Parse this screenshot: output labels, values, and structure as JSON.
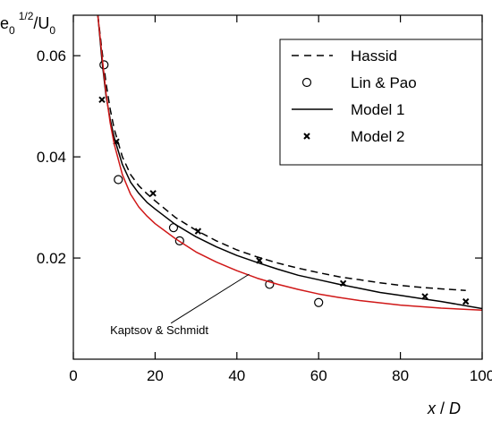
{
  "chart_data": {
    "type": "line",
    "xlabel": {
      "main": "x",
      "sep": " / ",
      "denom": "D"
    },
    "ylabel": {
      "base": "e",
      "sub": "0",
      "sup": "1/2",
      "sep": "/",
      "denom": "U",
      "denom_sub": "0"
    },
    "xlim": [
      0,
      100
    ],
    "ylim": [
      0.0,
      0.068
    ],
    "xticks": [
      0,
      20,
      40,
      60,
      80,
      100
    ],
    "xtick_labels": [
      "0",
      "20",
      "40",
      "60",
      "80",
      "100"
    ],
    "yticks": [
      0.02,
      0.04,
      0.06
    ],
    "ytick_labels": [
      "0.02",
      "0.04",
      "0.06"
    ],
    "grid": false,
    "legend_position": "top-right",
    "series": [
      {
        "name": "Hassid",
        "kind": "line",
        "style": "dashed",
        "color": "#000000",
        "x": [
          6,
          7,
          8,
          9,
          10,
          12,
          14,
          16,
          18,
          20,
          25,
          30,
          35,
          40,
          45,
          50,
          55,
          60,
          65,
          70,
          75,
          80,
          85,
          90,
          96
        ],
        "y": [
          0.068,
          0.061,
          0.0545,
          0.0495,
          0.0455,
          0.04,
          0.0365,
          0.0343,
          0.0327,
          0.0313,
          0.028,
          0.0255,
          0.0234,
          0.0216,
          0.0202,
          0.019,
          0.018,
          0.0171,
          0.0163,
          0.0157,
          0.0151,
          0.0146,
          0.0142,
          0.0139,
          0.0136
        ]
      },
      {
        "name": "Lin & Pao",
        "kind": "scatter",
        "marker": "circle",
        "color": "#000000",
        "x": [
          7.5,
          11,
          24.5,
          26,
          48,
          60
        ],
        "y": [
          0.0582,
          0.0355,
          0.026,
          0.0234,
          0.0148,
          0.0112
        ]
      },
      {
        "name": "Model 1",
        "kind": "line",
        "style": "solid",
        "color": "#000000",
        "x": [
          6,
          7,
          8,
          9,
          10,
          12,
          14,
          16,
          18,
          20,
          25,
          30,
          35,
          40,
          45,
          50,
          55,
          60,
          65,
          70,
          75,
          80,
          85,
          90,
          100
        ],
        "y": [
          0.068,
          0.059,
          0.052,
          0.0475,
          0.0438,
          0.0385,
          0.035,
          0.0328,
          0.031,
          0.0297,
          0.0266,
          0.0242,
          0.0222,
          0.0205,
          0.0191,
          0.0178,
          0.0166,
          0.0157,
          0.0148,
          0.014,
          0.0132,
          0.0126,
          0.012,
          0.0114,
          0.01
        ]
      },
      {
        "name": "Model 2",
        "kind": "scatter",
        "marker": "x",
        "color": "#000000",
        "x": [
          7,
          10.5,
          19.5,
          30.5,
          45.5,
          66,
          86,
          96
        ],
        "y": [
          0.0513,
          0.043,
          0.0328,
          0.0253,
          0.0195,
          0.015,
          0.0124,
          0.0114
        ]
      },
      {
        "name": "",
        "kind": "line",
        "style": "solid",
        "color": "#d01818",
        "x": [
          6,
          7,
          8,
          9,
          10,
          12,
          14,
          16,
          18,
          20,
          25,
          30,
          35,
          40,
          45,
          50,
          55,
          60,
          65,
          70,
          80,
          90,
          100
        ],
        "y": [
          0.068,
          0.06,
          0.0525,
          0.0468,
          0.0425,
          0.0365,
          0.0326,
          0.0301,
          0.0283,
          0.0268,
          0.0238,
          0.0212,
          0.0192,
          0.0175,
          0.016,
          0.0148,
          0.0138,
          0.0129,
          0.0122,
          0.0116,
          0.0107,
          0.0101,
          0.0097
        ]
      }
    ],
    "annotations": [
      {
        "text": "Kaptsov & Schmidt",
        "x": 9,
        "y": 0.005,
        "target_x": 43,
        "target_y": 0.0168
      }
    ]
  }
}
